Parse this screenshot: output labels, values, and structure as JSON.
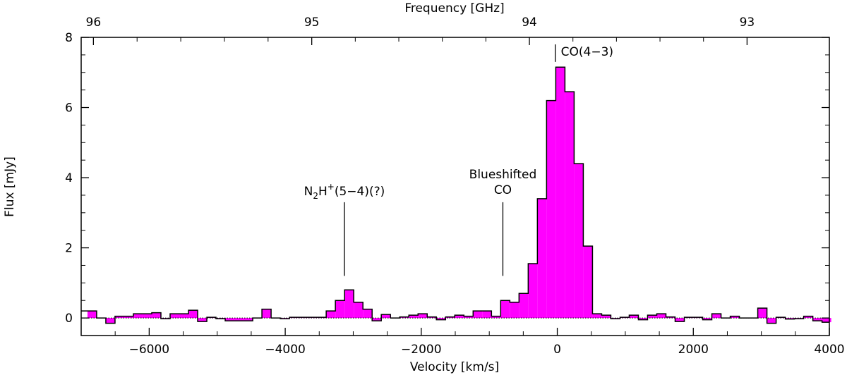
{
  "chart_data": {
    "type": "area",
    "step": true,
    "fill_color": "#ff00ff",
    "line_color": "#000000",
    "xlabel": "Velocity [km/s]",
    "ylabel": "Flux [mJy]",
    "top_xlabel": "Frequency [GHz]",
    "xlim": [
      -7000,
      4000
    ],
    "ylim": [
      -0.5,
      8
    ],
    "grid": false,
    "legend": "none",
    "x_ticks": [
      -6000,
      -4000,
      -2000,
      0,
      2000,
      4000
    ],
    "x_tick_labels": [
      "−6000",
      "−4000",
      "−2000",
      "0",
      "2000",
      "4000"
    ],
    "y_ticks": [
      0,
      2,
      4,
      6,
      8
    ],
    "y_tick_labels": [
      "0",
      "2",
      "4",
      "6",
      "8"
    ],
    "top_ticks_velocity": [
      -6820,
      -3610,
      -410,
      2790
    ],
    "top_tick_labels": [
      "96",
      "95",
      "94",
      "93"
    ],
    "bin_width": 135,
    "x": [
      -6840,
      -6705,
      -6570,
      -6435,
      -6300,
      -6165,
      -6030,
      -5895,
      -5760,
      -5625,
      -5490,
      -5355,
      -5220,
      -5085,
      -4950,
      -4815,
      -4680,
      -4545,
      -4410,
      -4275,
      -4140,
      -4005,
      -3870,
      -3735,
      -3600,
      -3465,
      -3330,
      -3195,
      -3060,
      -2925,
      -2790,
      -2655,
      -2520,
      -2385,
      -2250,
      -2115,
      -1980,
      -1845,
      -1710,
      -1575,
      -1440,
      -1305,
      -1170,
      -1035,
      -900,
      -765,
      -630,
      -495,
      -360,
      -225,
      -90,
      45,
      180,
      315,
      450,
      585,
      720,
      855,
      990,
      1125,
      1260,
      1395,
      1530,
      1665,
      1800,
      1935,
      2070,
      2205,
      2340,
      2475,
      2610,
      2745,
      2880,
      3015,
      3150,
      3285,
      3420,
      3555,
      3690,
      3825,
      3960
    ],
    "flux": [
      0.2,
      0.0,
      -0.15,
      0.05,
      0.05,
      0.12,
      0.12,
      0.15,
      -0.02,
      0.12,
      0.12,
      0.22,
      -0.1,
      0.02,
      -0.02,
      -0.08,
      -0.08,
      -0.08,
      0.0,
      0.25,
      0.0,
      -0.02,
      0.02,
      0.02,
      0.02,
      0.02,
      0.2,
      0.5,
      0.8,
      0.45,
      0.25,
      -0.08,
      0.1,
      0.0,
      0.03,
      0.08,
      0.12,
      0.03,
      -0.05,
      0.03,
      0.08,
      0.05,
      0.2,
      0.2,
      0.05,
      0.5,
      0.45,
      0.7,
      1.55,
      3.4,
      6.2,
      7.15,
      6.45,
      4.4,
      2.05,
      0.12,
      0.08,
      -0.02,
      0.02,
      0.08,
      -0.05,
      0.08,
      0.12,
      0.03,
      -0.1,
      0.02,
      0.02,
      -0.05,
      0.12,
      0.0,
      0.05,
      0.0,
      0.0,
      0.28,
      -0.15,
      0.02,
      -0.03,
      -0.02,
      0.05,
      -0.08,
      -0.12
    ],
    "annotations": [
      {
        "text_parts": [
          "N",
          "2",
          "H",
          "+",
          "(5−4)(?)"
        ],
        "x": -3130,
        "line_from": 1.2,
        "line_to": 3.3
      },
      {
        "text": "Blueshifted",
        "text2": "CO",
        "x": -800,
        "line_from": 1.2,
        "line_to": 3.3
      },
      {
        "text": "CO(4−3)",
        "x": -30,
        "line_from": 7.3,
        "line_to": 7.8
      }
    ]
  }
}
